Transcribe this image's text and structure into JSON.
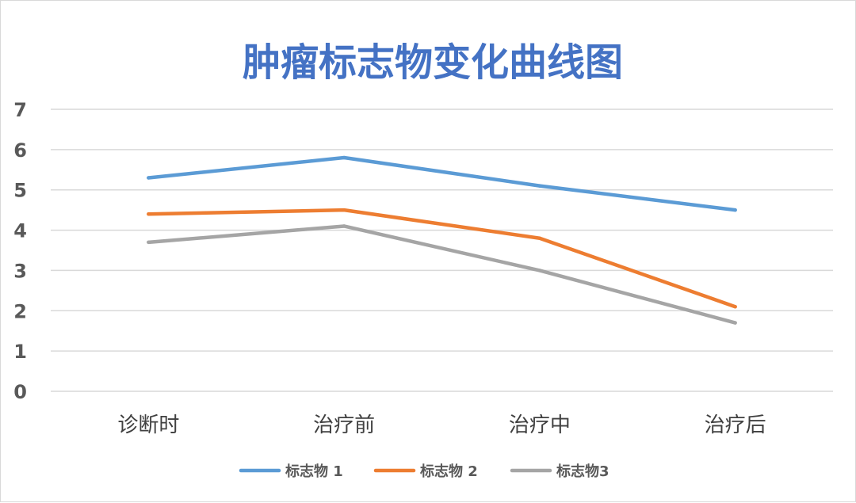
{
  "colors": {
    "title": "#4472c4",
    "grid": "#d9d9d9",
    "series": [
      "#5b9bd5",
      "#ed7d31",
      "#a5a5a5"
    ]
  },
  "chart_data": {
    "type": "line",
    "title": "肿瘤标志物变化曲线图",
    "xlabel": "",
    "ylabel": "",
    "categories": [
      "诊断时",
      "治疗前",
      "治疗中",
      "治疗后"
    ],
    "ylim": [
      0,
      7
    ],
    "yticks": [
      0,
      1,
      2,
      3,
      4,
      5,
      6,
      7
    ],
    "grid": true,
    "legend_position": "bottom",
    "series": [
      {
        "name": "标志物 1",
        "values": [
          5.3,
          5.8,
          5.1,
          4.5
        ]
      },
      {
        "name": "标志物 2",
        "values": [
          4.4,
          4.5,
          3.8,
          2.1
        ]
      },
      {
        "name": "标志物3",
        "values": [
          3.7,
          4.1,
          3.0,
          1.7
        ]
      }
    ]
  }
}
